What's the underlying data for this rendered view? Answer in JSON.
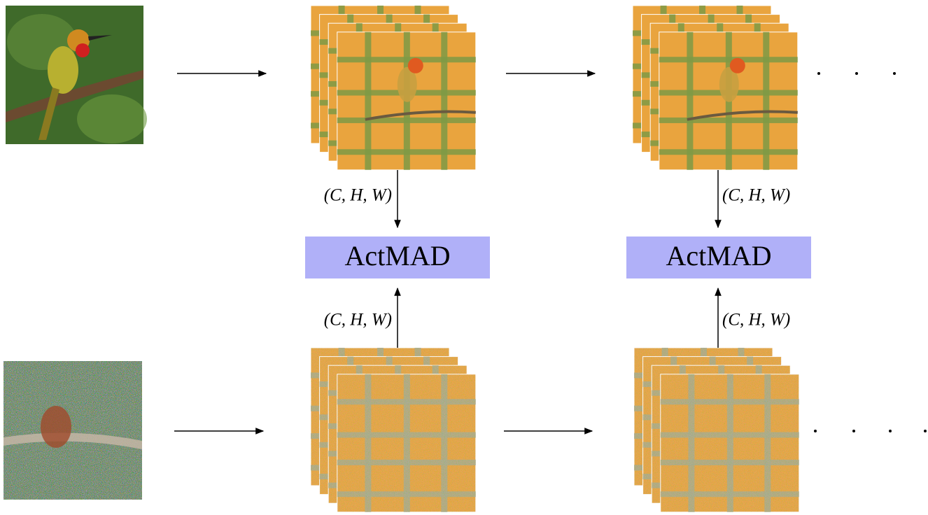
{
  "blocks": [
    {
      "label": "ActMAD",
      "top_shape": "(C, H, W)",
      "bottom_shape": "(C, H, W)"
    },
    {
      "label": "ActMAD",
      "top_shape": "(C, H, W)",
      "bottom_shape": "(C, H, W)"
    }
  ]
}
